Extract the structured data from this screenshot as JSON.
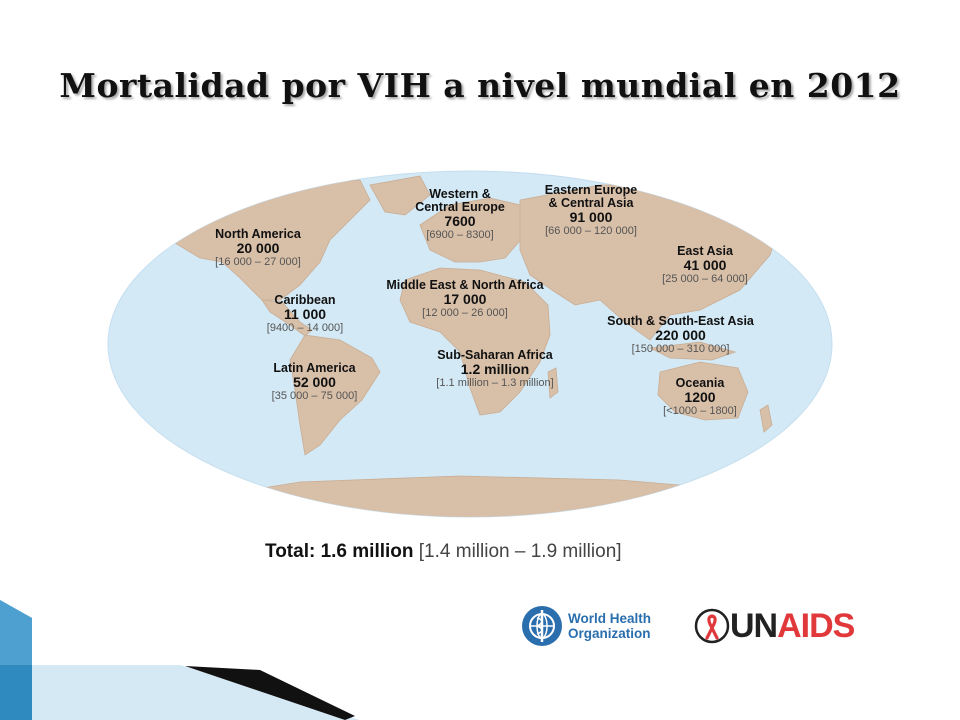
{
  "title": "Mortalidad por VIH a nivel mundial en 2012",
  "colors": {
    "ocean": "#d3e9f5",
    "land": "#d8bfa8",
    "text": "#111111",
    "unaids_red": "#e1393b",
    "who_blue": "#2a6ead",
    "accent_blue": "#2f8ac0"
  },
  "regions": [
    {
      "name": "North America",
      "value": "20 000",
      "range": "[16 000 – 27 000]"
    },
    {
      "name": "Caribbean",
      "value": "11 000",
      "range": "[9400 – 14 000]"
    },
    {
      "name": "Latin America",
      "value": "52 000",
      "range": "[35 000 – 75 000]"
    },
    {
      "name": "Western & Central Europe",
      "name_line1": "Western &",
      "name_line2": "Central Europe",
      "value": "7600",
      "range": "[6900 – 8300]"
    },
    {
      "name": "Eastern Europe & Central Asia",
      "name_line1": "Eastern Europe",
      "name_line2": "& Central Asia",
      "value": "91 000",
      "range": "[66 000 – 120 000]"
    },
    {
      "name": "Middle East & North Africa",
      "value": "17 000",
      "range": "[12 000 – 26 000]"
    },
    {
      "name": "Sub-Saharan Africa",
      "value": "1.2 million",
      "range": "[1.1 million – 1.3 million]"
    },
    {
      "name": "East Asia",
      "value": "41 000",
      "range": "[25 000 – 64 000]"
    },
    {
      "name": "South & South-East Asia",
      "value": "220 000",
      "range": "[150 000 – 310 000]"
    },
    {
      "name": "Oceania",
      "value": "1200",
      "range": "[<1000 – 1800]"
    }
  ],
  "total": {
    "label": "Total: 1.6 million",
    "range": "[1.4 million – 1.9 million]"
  },
  "logos": {
    "who": {
      "line1": "World Health",
      "line2": "Organization"
    },
    "unaids": {
      "part1": "UN",
      "part2": "AIDS"
    }
  }
}
